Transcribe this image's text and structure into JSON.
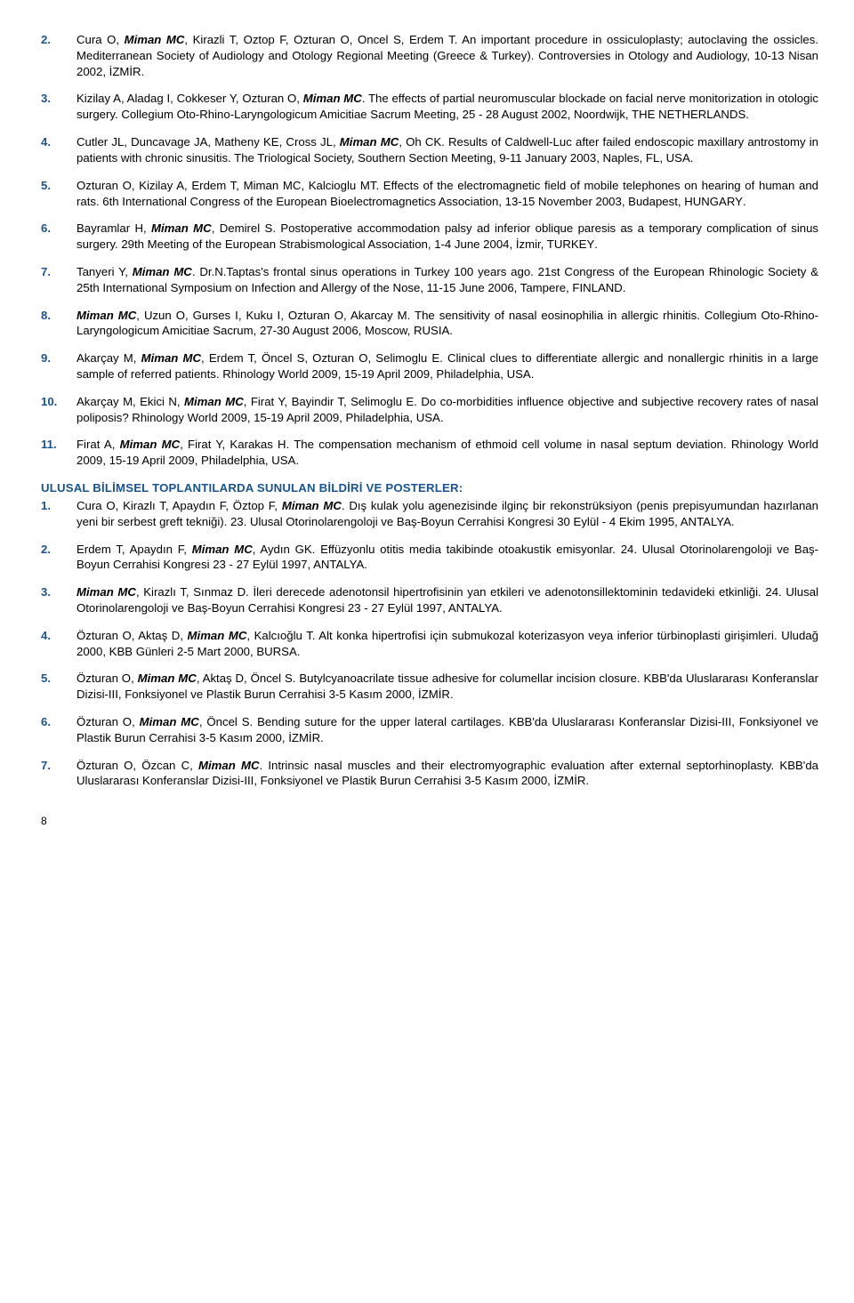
{
  "intl": [
    {
      "n": "2.",
      "html": "Cura O, <b><i>Miman MC</i></b>, Kirazli T, Oztop F, Ozturan O, Oncel S, Erdem T. An important procedure in ossiculoplasty; autoclaving the ossicles. Mediterranean Society of Audiology and Otology Regional Meeting (Greece & Turkey). Controversies in Otology and Audiology, 10-13 Nisan 2002, İ<span class='sc'>ZMİR</span>."
    },
    {
      "n": "3.",
      "html": "Kizilay A, Aladag I, Cokkeser Y, Ozturan O, <b><i>Miman MC</i></b>. The effects of partial neuromuscular blockade on facial nerve monitorization in otologic surgery. Collegium Oto-Rhino-Laryngologicum Amicitiae Sacrum Meeting, 25 - 28 August 2002, Noordwijk, T<span class='sc'>HE</span> N<span class='sc'>ETHERLANDS</span>."
    },
    {
      "n": "4.",
      "html": "Cutler JL, Duncavage JA, Matheny KE, Cross JL, <b><i>Miman MC</i></b>, Oh CK. Results of Caldwell-Luc after failed endoscopic maxillary antrostomy in patients with chronic sinusitis. The Triological Society, Southern Section Meeting, 9-11 January 2003, Naples, FL, USA."
    },
    {
      "n": "5.",
      "html": "Ozturan O, Kizilay A, Erdem T, Miman MC, Kalcioglu MT. Effects of the electromagnetic field of mobile telephones on hearing of human and rats. 6th International Congress of the European Bioelectromagnetics Association, 13-15 November 2003, Budapest, H<span class='sc'>UNGARY</span>."
    },
    {
      "n": "6.",
      "html": "Bayramlar H, <b><i>Miman MC</i></b>, Demirel S. Postoperative accommodation palsy ad inferior oblique paresis as a temporary complication of sinus surgery. 29th Meeting of the European Strabismological Association, 1-4 June 2004, İzmir, T<span class='sc'>URKEY</span>."
    },
    {
      "n": "7.",
      "html": "Tanyeri Y, <b><i>Miman MC</i></b>. Dr.N.Taptas's frontal sinus operations in Turkey 100 years ago. 21st Congress of the European Rhinologic Society & 25th International Symposium on Infection and Allergy of the Nose, 11-15 June 2006, Tampere, F<span class='sc'>INLAND</span>."
    },
    {
      "n": "8.",
      "html": "<b><i>Miman MC</i></b>, Uzun O, Gurses I, Kuku I, Ozturan O, Akarcay M. The sensitivity of nasal eosinophilia in allergic rhinitis. Collegium Oto-Rhino-Laryngologicum Amicitiae Sacrum, 27-30 August 2006, Moscow, R<span class='sc'>USIA</span>."
    },
    {
      "n": "9.",
      "html": "Akarçay M, <b><i>Miman MC</i></b>, Erdem T, Öncel S, Ozturan O, Selimoglu E. Clinical clues to differentiate allergic and nonallergic rhinitis in a large sample of referred patients. Rhinology World 2009, 15-19 April 2009, Philadelphia, USA."
    },
    {
      "n": "10.",
      "html": "Akarçay M, Ekici N, <b><i>Miman MC</i></b>, Firat Y, Bayindir T, Selimoglu E. Do co-morbidities influence objective and subjective recovery rates of nasal poliposis? Rhinology World 2009, 15-19 April 2009, Philadelphia, USA."
    },
    {
      "n": "11.",
      "html": "Firat A, <b><i>Miman MC</i></b>, Firat Y, Karakas H. The compensation mechanism of ethmoid cell volume in nasal septum deviation. Rhinology World 2009, 15-19 April 2009, Philadelphia, USA."
    }
  ],
  "section_header": "ULUSAL BİLİMSEL TOPLANTILARDA SUNULAN BİLDİRİ VE POSTERLER:",
  "national": [
    {
      "n": "1.",
      "html": "Cura O, Kirazlı T, Apaydın F, Öztop F, <b><i>Miman MC</i></b>. Dış kulak yolu agenezisinde ilginç bir rekonstrüksiyon (penis prepisyumundan hazırlanan yeni bir serbest greft tekniği). 23. Ulusal Otorinolarengoloji ve Baş-Boyun Cerrahisi Kongresi 30 Eylül - 4 Ekim 1995, A<span class='sc'>NTALYA</span>."
    },
    {
      "n": "2.",
      "html": "Erdem T, Apaydın F, <b><i>Miman MC</i></b>, Aydın GK. Effüzyonlu otitis media takibinde otoakustik emisyonlar. 24. Ulusal Otorinolarengoloji ve Baş-Boyun Cerrahisi Kongresi 23 - 27 Eylül 1997, A<span class='sc'>NTALYA</span>."
    },
    {
      "n": "3.",
      "html": "<b><i>Miman MC</i></b>, Kirazlı T, Sınmaz D. İleri derecede adenotonsil hipertrofisinin yan etkileri ve adenotonsillektominin tedavideki etkinliği. 24. Ulusal Otorinolarengoloji ve Baş-Boyun Cerrahisi Kongresi 23 - 27 Eylül 1997, A<span class='sc'>NTALYA</span>."
    },
    {
      "n": "4.",
      "html": "Özturan O, Aktaş D, <b><i>Miman MC</i></b>, Kalcıoğlu T. Alt konka hipertrofisi için submukozal koterizasyon veya inferior türbinoplasti girişimleri. Uludağ 2000, KBB Günleri 2-5 Mart 2000, B<span class='sc'>URSA</span>."
    },
    {
      "n": "5.",
      "html": "Özturan O, <b><i>Miman MC</i></b>, Aktaş D, Öncel S. Butylcyanoacrilate tissue adhesive for columellar incision closure. KBB'da Uluslararası Konferanslar Dizisi-III, Fonksiyonel ve Plastik Burun Cerrahisi 3-5 Kasım 2000, İ<span class='sc'>ZMİR</span>."
    },
    {
      "n": "6.",
      "html": "Özturan O, <b><i>Miman MC</i></b>, Öncel S. Bending suture for the upper lateral cartilages. KBB'da Uluslararası Konferanslar Dizisi-III, Fonksiyonel ve Plastik Burun Cerrahisi 3-5 Kasım 2000, İ<span class='sc'>ZMİR</span>."
    },
    {
      "n": "7.",
      "html": "Özturan O, Özcan C, <b><i>Miman MC</i></b>. Intrinsic nasal muscles and their electromyographic evaluation after external septorhinoplasty. KBB'da Uluslararası Konferanslar Dizisi-III, Fonksiyonel ve Plastik Burun Cerrahisi 3-5 Kasım 2000, İ<span class='sc'>ZMİR</span>."
    }
  ],
  "page_number": "8"
}
